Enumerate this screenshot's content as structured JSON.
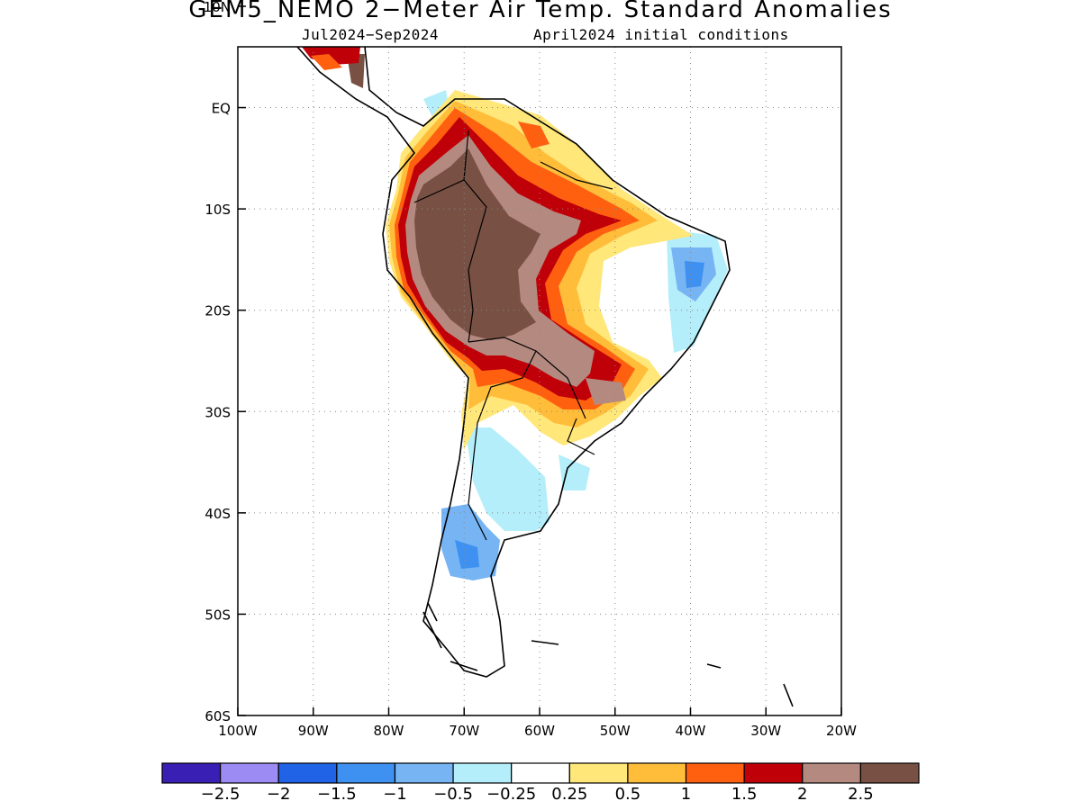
{
  "title": "GEM5_NEMO 2−Meter Air Temp. Standard Anomalies",
  "subtitle_left": "Jul2024−Sep2024",
  "subtitle_right": "April2024 initial conditions",
  "map": {
    "region": "South America",
    "lon_range": [
      -100,
      -20
    ],
    "lat_range": [
      -60,
      6
    ],
    "lat_ticks": [
      {
        "value": 10,
        "label": "10N"
      },
      {
        "value": 0,
        "label": "EQ"
      },
      {
        "value": -10,
        "label": "10S"
      },
      {
        "value": -20,
        "label": "20S"
      },
      {
        "value": -30,
        "label": "30S"
      },
      {
        "value": -40,
        "label": "40S"
      },
      {
        "value": -50,
        "label": "50S"
      },
      {
        "value": -60,
        "label": "60S"
      }
    ],
    "lon_ticks": [
      {
        "value": -100,
        "label": "100W"
      },
      {
        "value": -90,
        "label": "90W"
      },
      {
        "value": -80,
        "label": "80W"
      },
      {
        "value": -70,
        "label": "70W"
      },
      {
        "value": -60,
        "label": "60W"
      },
      {
        "value": -50,
        "label": "50W"
      },
      {
        "value": -40,
        "label": "40W"
      },
      {
        "value": -30,
        "label": "30W"
      },
      {
        "value": -20,
        "label": "20W"
      }
    ],
    "grid": "dotted"
  },
  "colorbar": {
    "colors": [
      "#3a1fb4",
      "#9d8bf4",
      "#2063e6",
      "#3e91f0",
      "#76b4f4",
      "#b4eefa",
      "#ffffff",
      "#ffe77a",
      "#ffbd3a",
      "#ff6010",
      "#c00008",
      "#b48a80",
      "#785044"
    ],
    "labels": [
      "−2.5",
      "−2",
      "−1.5",
      "−1",
      "−0.5",
      "−0.25",
      "0.25",
      "0.5",
      "1",
      "1.5",
      "2",
      "2.5"
    ]
  }
}
